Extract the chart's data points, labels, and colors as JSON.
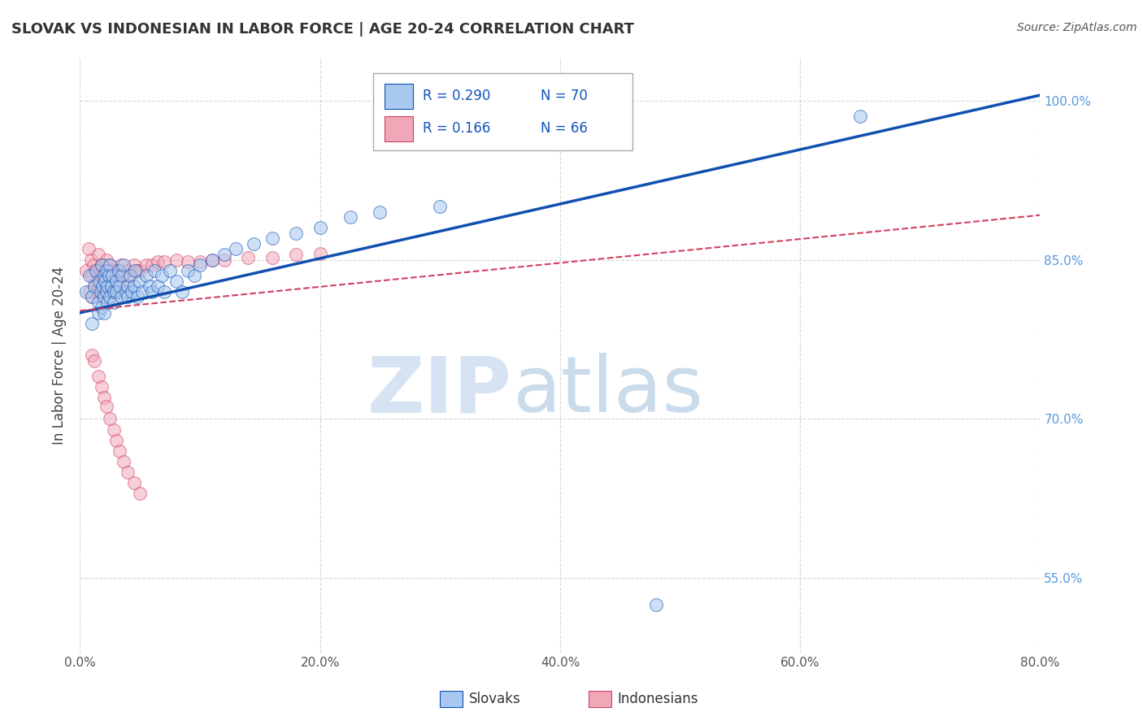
{
  "title": "SLOVAK VS INDONESIAN IN LABOR FORCE | AGE 20-24 CORRELATION CHART",
  "source": "Source: ZipAtlas.com",
  "ylabel": "In Labor Force | Age 20-24",
  "xmin": 0.0,
  "xmax": 0.8,
  "ymin": 0.48,
  "ymax": 1.04,
  "yticks": [
    0.55,
    0.7,
    0.85,
    1.0
  ],
  "ytick_labels": [
    "55.0%",
    "70.0%",
    "85.0%",
    "100.0%"
  ],
  "xticks": [
    0.0,
    0.2,
    0.4,
    0.6,
    0.8
  ],
  "xtick_labels": [
    "0.0%",
    "20.0%",
    "40.0%",
    "60.0%",
    "80.0%"
  ],
  "legend_R1": "0.290",
  "legend_N1": "70",
  "legend_R2": "0.166",
  "legend_N2": "66",
  "legend_label1": "Slovaks",
  "legend_label2": "Indonesians",
  "color_slovak": "#A8C8F0",
  "color_indonesian": "#F0A8B8",
  "color_trend_slovak": "#1050B0",
  "color_trend_indonesian": "#D04060",
  "watermark_zip": "ZIP",
  "watermark_atlas": "atlas",
  "background_color": "#FFFFFF",
  "slovak_x": [
    0.005,
    0.008,
    0.01,
    0.01,
    0.012,
    0.013,
    0.015,
    0.015,
    0.016,
    0.017,
    0.018,
    0.018,
    0.019,
    0.02,
    0.02,
    0.02,
    0.021,
    0.022,
    0.022,
    0.023,
    0.023,
    0.024,
    0.025,
    0.025,
    0.026,
    0.027,
    0.028,
    0.028,
    0.03,
    0.03,
    0.032,
    0.033,
    0.034,
    0.035,
    0.036,
    0.038,
    0.04,
    0.04,
    0.042,
    0.043,
    0.045,
    0.046,
    0.048,
    0.05,
    0.052,
    0.055,
    0.058,
    0.06,
    0.062,
    0.065,
    0.068,
    0.07,
    0.075,
    0.08,
    0.085,
    0.09,
    0.095,
    0.1,
    0.11,
    0.12,
    0.13,
    0.145,
    0.16,
    0.18,
    0.2,
    0.225,
    0.25,
    0.3,
    0.48,
    0.65
  ],
  "slovak_y": [
    0.82,
    0.835,
    0.815,
    0.79,
    0.825,
    0.84,
    0.81,
    0.8,
    0.83,
    0.82,
    0.845,
    0.805,
    0.825,
    0.835,
    0.815,
    0.8,
    0.83,
    0.82,
    0.84,
    0.81,
    0.825,
    0.835,
    0.845,
    0.815,
    0.825,
    0.835,
    0.82,
    0.81,
    0.83,
    0.82,
    0.84,
    0.825,
    0.815,
    0.835,
    0.845,
    0.82,
    0.825,
    0.815,
    0.835,
    0.82,
    0.825,
    0.84,
    0.815,
    0.83,
    0.82,
    0.835,
    0.825,
    0.82,
    0.84,
    0.825,
    0.835,
    0.82,
    0.84,
    0.83,
    0.82,
    0.84,
    0.835,
    0.845,
    0.85,
    0.855,
    0.86,
    0.865,
    0.87,
    0.875,
    0.88,
    0.89,
    0.895,
    0.9,
    0.525,
    0.985
  ],
  "indonesian_x": [
    0.005,
    0.007,
    0.008,
    0.009,
    0.01,
    0.01,
    0.011,
    0.012,
    0.013,
    0.014,
    0.015,
    0.015,
    0.016,
    0.017,
    0.018,
    0.018,
    0.019,
    0.02,
    0.02,
    0.021,
    0.022,
    0.022,
    0.023,
    0.023,
    0.024,
    0.025,
    0.026,
    0.027,
    0.028,
    0.03,
    0.032,
    0.034,
    0.035,
    0.038,
    0.04,
    0.042,
    0.045,
    0.048,
    0.05,
    0.055,
    0.06,
    0.065,
    0.07,
    0.08,
    0.09,
    0.1,
    0.11,
    0.12,
    0.14,
    0.16,
    0.18,
    0.2,
    0.01,
    0.012,
    0.015,
    0.018,
    0.02,
    0.022,
    0.025,
    0.028,
    0.03,
    0.033,
    0.036,
    0.04,
    0.045,
    0.05
  ],
  "indonesian_y": [
    0.84,
    0.86,
    0.82,
    0.85,
    0.835,
    0.815,
    0.845,
    0.825,
    0.84,
    0.83,
    0.855,
    0.82,
    0.84,
    0.83,
    0.845,
    0.82,
    0.835,
    0.845,
    0.825,
    0.84,
    0.83,
    0.85,
    0.835,
    0.82,
    0.84,
    0.845,
    0.83,
    0.84,
    0.82,
    0.835,
    0.84,
    0.845,
    0.835,
    0.825,
    0.84,
    0.835,
    0.845,
    0.84,
    0.84,
    0.845,
    0.845,
    0.848,
    0.848,
    0.85,
    0.848,
    0.848,
    0.85,
    0.85,
    0.852,
    0.852,
    0.855,
    0.856,
    0.76,
    0.755,
    0.74,
    0.73,
    0.72,
    0.712,
    0.7,
    0.69,
    0.68,
    0.67,
    0.66,
    0.65,
    0.64,
    0.63
  ],
  "trend_slovak_x0": 0.0,
  "trend_slovak_y0": 0.8,
  "trend_slovak_x1": 0.8,
  "trend_slovak_y1": 1.005,
  "trend_indonesian_x0": 0.0,
  "trend_indonesian_y0": 0.802,
  "trend_indonesian_x1": 0.8,
  "trend_indonesian_y1": 0.892
}
